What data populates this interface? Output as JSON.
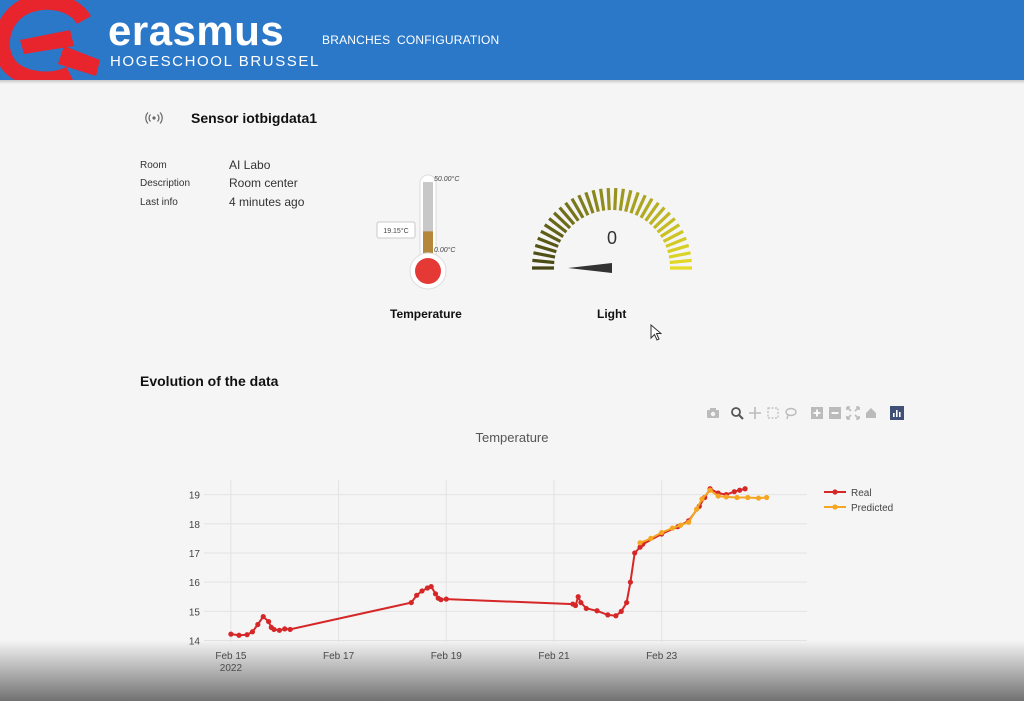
{
  "header": {
    "brand_name": "erasmus",
    "brand_sub": "HOGESCHOOL BRUSSEL",
    "nav": [
      "BRANCHES",
      "CONFIGURATION"
    ]
  },
  "sensor": {
    "title": "Sensor iotbigdata1",
    "fields": [
      {
        "label": "Room",
        "value": "AI Labo"
      },
      {
        "label": "Description",
        "value": "Room center"
      },
      {
        "label": "Last info",
        "value": "4 minutes ago"
      }
    ]
  },
  "temperature_gauge": {
    "label": "Temperature",
    "max_label": "50.00°C",
    "min_label": "0.00°C",
    "current_label": "19.15°C",
    "current_value": 19.15,
    "min": 0,
    "max": 50
  },
  "light_gauge": {
    "label": "Light",
    "value_text": "0",
    "value": 0
  },
  "evolution": {
    "section_title": "Evolution of the data",
    "modebar_icons": [
      "camera-icon",
      "zoom-icon",
      "pan-icon",
      "box-select-icon",
      "lasso-icon",
      "zoom-in-icon",
      "zoom-out-icon",
      "autoscale-icon",
      "reset-axes-icon",
      "plotly-logo-icon"
    ]
  },
  "colors": {
    "header_bg": "#2b78c9",
    "real": "#d62728",
    "predicted": "#f5a623",
    "thermo_red": "#e53935"
  },
  "chart_data": {
    "type": "line",
    "title": "Temperature",
    "xlabel": "",
    "ylabel": "",
    "x_ticks": [
      "Feb 15\n2022",
      "Feb 17",
      "Feb 19",
      "Feb 21",
      "Feb 23"
    ],
    "x_tick_values": [
      15,
      17,
      19,
      21,
      23
    ],
    "xlim": [
      14.5,
      25.7
    ],
    "y_ticks": [
      14,
      15,
      16,
      17,
      18,
      19
    ],
    "ylim": [
      13.95,
      19.5
    ],
    "grid": true,
    "legend_position": "top-right",
    "series": [
      {
        "name": "Real",
        "color": "#d62728",
        "x": [
          15.0,
          15.15,
          15.3,
          15.4,
          15.5,
          15.6,
          15.7,
          15.75,
          15.8,
          15.9,
          16.0,
          16.1,
          18.35,
          18.45,
          18.55,
          18.65,
          18.72,
          18.8,
          18.85,
          18.9,
          19.0,
          21.35,
          21.4,
          21.45,
          21.5,
          21.6,
          21.8,
          22.0,
          22.15,
          22.25,
          22.35,
          22.42,
          22.5,
          22.6,
          22.65,
          23.0,
          23.3,
          23.5,
          23.7,
          23.8,
          23.9,
          24.05,
          24.2,
          24.35,
          24.45,
          24.55
        ],
        "y": [
          14.22,
          14.18,
          14.2,
          14.3,
          14.55,
          14.82,
          14.65,
          14.45,
          14.38,
          14.35,
          14.4,
          14.38,
          15.3,
          15.55,
          15.7,
          15.8,
          15.85,
          15.6,
          15.45,
          15.4,
          15.42,
          15.25,
          15.2,
          15.5,
          15.3,
          15.1,
          15.02,
          14.88,
          14.85,
          15.0,
          15.3,
          16.0,
          17.0,
          17.2,
          17.3,
          17.65,
          17.9,
          18.1,
          18.6,
          18.9,
          19.2,
          19.05,
          19.0,
          19.1,
          19.15,
          19.2
        ]
      },
      {
        "name": "Predicted",
        "color": "#f5a623",
        "x": [
          22.6,
          22.8,
          23.0,
          23.2,
          23.35,
          23.5,
          23.65,
          23.75,
          23.9,
          24.05,
          24.2,
          24.4,
          24.6,
          24.8,
          24.95
        ],
        "y": [
          17.35,
          17.5,
          17.7,
          17.85,
          17.95,
          18.05,
          18.5,
          18.85,
          19.15,
          18.95,
          18.92,
          18.9,
          18.9,
          18.88,
          18.9
        ]
      }
    ]
  }
}
